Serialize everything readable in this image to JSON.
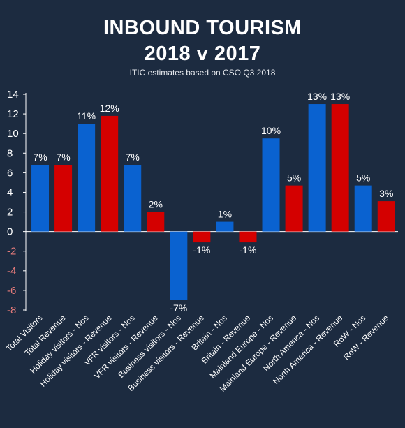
{
  "chart_data": {
    "type": "bar",
    "title": "INBOUND TOURISM",
    "title_line_2": "2018 v 2017",
    "subtitle": "ITIC estimates based on CSO Q3 2018",
    "categories": [
      "Total Visitors",
      "Total Revenue",
      "Holiday visitors - Nos",
      "Holiday visitors - Revenue",
      "VFR visitors - Nos",
      "VFR visitors - Revenue",
      "Business visitors - Nos",
      "Business visitors - Revenue",
      "Britain - Nos",
      "Britain - Revenue",
      "Mainland Europe - Nos",
      "Mainland Europe - Revenue",
      "North America - Nos",
      "North America - Revenue",
      "RoW - Nos",
      "RoW - Revenue"
    ],
    "values": [
      6.8,
      6.8,
      11,
      11.8,
      6.8,
      2,
      -7,
      -1.1,
      1,
      -1.1,
      9.5,
      4.7,
      13,
      13,
      4.7,
      3.1
    ],
    "data_labels": [
      "7%",
      "7%",
      "11%",
      "12%",
      "7%",
      "2%",
      "-7%",
      "-1%",
      "1%",
      "-1%",
      "10%",
      "5%",
      "13%",
      "13%",
      "5%",
      "3%"
    ],
    "ylim": [
      -8,
      14
    ],
    "yticks": [
      "14",
      "12",
      "10",
      "8",
      "6",
      "4",
      "2",
      "0",
      "-2",
      "-4",
      "-6",
      "-8"
    ],
    "grid": false,
    "legend": "none",
    "colors": {
      "nos": "#0a62d0",
      "revenue": "#d40000",
      "negative_tick": "#e27a7a",
      "positive_tick": "#ffffff",
      "background": "#1c2b40"
    }
  }
}
